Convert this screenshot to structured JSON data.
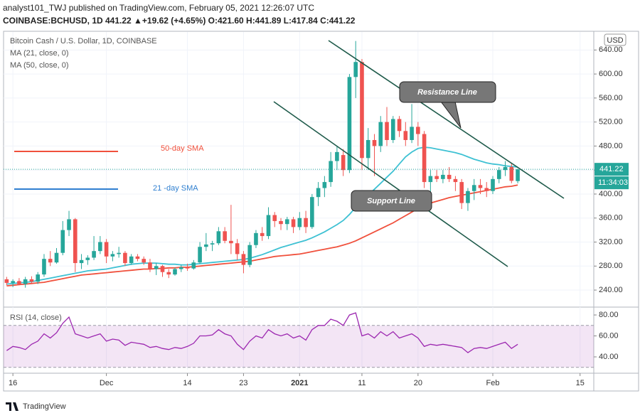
{
  "header": {
    "line1": "analyst101_TWJ published on TradingView.com, February 05, 2021 12:26:07 UTC",
    "line2": "COINBASE:BCHUSD, 1D 441.22 ▲+19.62 (+4.65%) O:421.60 H:441.89 L:417.84 C:441.22"
  },
  "footer": {
    "brand": "TradingView"
  },
  "chart_data": {
    "type": "candlestick",
    "title": "Bitcoin Cash / U.S. Dollar, 1D, COINBASE",
    "currency": "USD",
    "countdown": "11:34:03",
    "up_color": "#26a69a",
    "down_color": "#ef5350",
    "open": [
      258,
      252,
      255,
      250,
      258,
      254,
      266,
      292,
      286,
      302,
      340,
      358,
      285,
      290,
      294,
      305,
      320,
      296,
      300,
      302,
      285,
      296,
      292,
      286,
      275,
      280,
      270,
      266,
      275,
      278,
      276,
      286,
      312,
      316,
      318,
      338,
      322,
      318,
      300,
      282,
      315,
      335,
      330,
      365,
      355,
      350,
      358,
      345,
      360,
      345,
      395,
      410,
      420,
      455,
      465,
      440,
      595,
      620,
      460,
      490,
      480,
      520,
      490,
      525,
      505,
      490,
      512,
      500,
      420,
      430,
      425,
      432,
      425,
      420,
      385,
      405,
      415,
      410,
      405,
      425,
      440,
      445,
      421.6
    ],
    "high": [
      262,
      258,
      260,
      262,
      263,
      270,
      300,
      305,
      310,
      355,
      372,
      360,
      300,
      298,
      330,
      330,
      325,
      305,
      312,
      305,
      300,
      300,
      296,
      292,
      285,
      282,
      275,
      278,
      282,
      284,
      290,
      320,
      335,
      322,
      345,
      345,
      382,
      325,
      305,
      320,
      340,
      345,
      378,
      370,
      360,
      362,
      362,
      370,
      372,
      400,
      420,
      430,
      470,
      480,
      475,
      600,
      655,
      625,
      510,
      500,
      530,
      545,
      530,
      530,
      520,
      550,
      520,
      505,
      440,
      440,
      440,
      445,
      430,
      425,
      410,
      425,
      425,
      420,
      430,
      445,
      455,
      452,
      441.89
    ],
    "low": [
      248,
      245,
      248,
      244,
      250,
      250,
      262,
      280,
      284,
      298,
      330,
      270,
      275,
      282,
      290,
      300,
      285,
      288,
      294,
      280,
      282,
      288,
      282,
      270,
      265,
      262,
      260,
      264,
      270,
      272,
      274,
      284,
      305,
      305,
      315,
      318,
      300,
      290,
      268,
      278,
      310,
      322,
      325,
      345,
      340,
      340,
      335,
      340,
      335,
      342,
      380,
      395,
      412,
      440,
      430,
      435,
      560,
      440,
      440,
      430,
      470,
      480,
      485,
      495,
      480,
      485,
      480,
      410,
      395,
      420,
      418,
      420,
      405,
      375,
      372,
      390,
      400,
      395,
      400,
      418,
      430,
      418,
      417.84
    ],
    "close": [
      252,
      255,
      250,
      258,
      254,
      266,
      292,
      286,
      302,
      340,
      358,
      285,
      290,
      294,
      305,
      320,
      296,
      300,
      302,
      285,
      296,
      292,
      286,
      275,
      280,
      270,
      266,
      275,
      278,
      276,
      286,
      312,
      316,
      318,
      338,
      322,
      318,
      300,
      282,
      315,
      335,
      330,
      365,
      355,
      350,
      358,
      345,
      360,
      345,
      395,
      410,
      420,
      455,
      470,
      440,
      595,
      620,
      460,
      490,
      480,
      520,
      490,
      525,
      505,
      490,
      512,
      500,
      420,
      430,
      425,
      432,
      425,
      420,
      385,
      405,
      415,
      410,
      405,
      425,
      440,
      445,
      422,
      441.22
    ],
    "series": [
      {
        "name": "MA (21, close, 0)",
        "color": "#3ec1d3",
        "values": [
          250,
          251,
          252,
          253,
          254,
          256,
          258,
          260,
          262,
          264,
          266,
          268,
          270,
          272,
          273,
          274,
          275,
          277,
          279,
          281,
          283,
          284,
          285,
          285,
          285,
          284,
          283,
          283,
          282,
          282,
          283,
          284,
          285,
          286,
          287,
          288,
          289,
          290,
          291,
          293,
          296,
          299,
          303,
          307,
          311,
          314,
          317,
          320,
          323,
          327,
          332,
          337,
          343,
          349,
          356,
          366,
          378,
          388,
          398,
          408,
          418,
          428,
          438,
          450,
          462,
          470,
          476,
          478,
          477,
          475,
          473,
          471,
          469,
          466,
          462,
          458,
          455,
          452,
          450,
          449,
          447,
          446,
          445
        ]
      },
      {
        "name": "MA (50, close, 0)",
        "color": "#f0503c",
        "values": [
          247,
          248,
          249,
          250,
          251,
          252,
          253,
          255,
          257,
          259,
          261,
          263,
          265,
          266,
          267,
          268,
          269,
          270,
          271,
          272,
          273,
          274,
          275,
          275,
          276,
          276,
          277,
          277,
          278,
          278,
          279,
          280,
          281,
          282,
          283,
          284,
          285,
          286,
          287,
          288,
          290,
          292,
          294,
          296,
          297,
          298,
          299,
          300,
          302,
          304,
          306,
          308,
          310,
          312,
          315,
          318,
          322,
          327,
          332,
          337,
          342,
          347,
          352,
          358,
          364,
          370,
          376,
          381,
          385,
          388,
          391,
          394,
          396,
          398,
          400,
          402,
          404,
          406,
          408,
          410,
          412,
          413,
          415
        ]
      }
    ],
    "ylim": [
      214,
      670
    ],
    "yticks": [
      {
        "value": 240,
        "label": "240.00"
      },
      {
        "value": 280,
        "label": "280.00"
      },
      {
        "value": 320,
        "label": "320.00"
      },
      {
        "value": 360,
        "label": "360.00"
      },
      {
        "value": 400,
        "label": "400.00"
      },
      {
        "value": 440,
        "label": "440.00"
      },
      {
        "value": 480,
        "label": "480.00"
      },
      {
        "value": 520,
        "label": "520.00"
      },
      {
        "value": 560,
        "label": "560.00"
      },
      {
        "value": 600,
        "label": "600.00"
      },
      {
        "value": 640,
        "label": "640.00"
      }
    ],
    "xlim": [
      -0.5,
      94.2
    ],
    "xticks": [
      {
        "value": 1,
        "label": "16"
      },
      {
        "value": 16,
        "label": "Dec"
      },
      {
        "value": 29,
        "label": "14"
      },
      {
        "value": 38,
        "label": "23"
      },
      {
        "value": 47,
        "label": "2021"
      },
      {
        "value": 57,
        "label": "11"
      },
      {
        "value": 66,
        "label": "20"
      },
      {
        "value": 78,
        "label": "Feb"
      },
      {
        "value": 92,
        "label": "15"
      }
    ],
    "grid": true,
    "annotations": {
      "sma50": "50-day SMA",
      "sma21": "21 -day SMA",
      "resistance": "Resistance Line",
      "support": "Support Line"
    },
    "rsi": {
      "name": "RSI (14, close)",
      "color": "#9c27b0",
      "values": [
        46,
        50,
        49,
        47,
        52,
        55,
        62,
        58,
        63,
        72,
        78,
        62,
        60,
        58,
        60,
        62,
        55,
        57,
        56,
        51,
        54,
        53,
        52,
        49,
        50,
        48,
        47,
        49,
        48,
        50,
        53,
        60,
        60,
        61,
        66,
        62,
        60,
        52,
        47,
        55,
        60,
        58,
        66,
        62,
        60,
        62,
        58,
        60,
        56,
        66,
        70,
        70,
        76,
        74,
        70,
        80,
        82,
        60,
        62,
        58,
        64,
        60,
        64,
        58,
        60,
        62,
        58,
        50,
        52,
        51,
        52,
        51,
        50,
        49,
        44,
        48,
        49,
        48,
        50,
        52,
        54,
        48,
        52
      ],
      "ylim": [
        27.8,
        87.5
      ],
      "band": [
        30,
        70
      ],
      "yticks": [
        {
          "value": 40,
          "label": "40.00"
        },
        {
          "value": 60,
          "label": "60.00"
        },
        {
          "value": 80,
          "label": "80.00"
        }
      ]
    }
  }
}
